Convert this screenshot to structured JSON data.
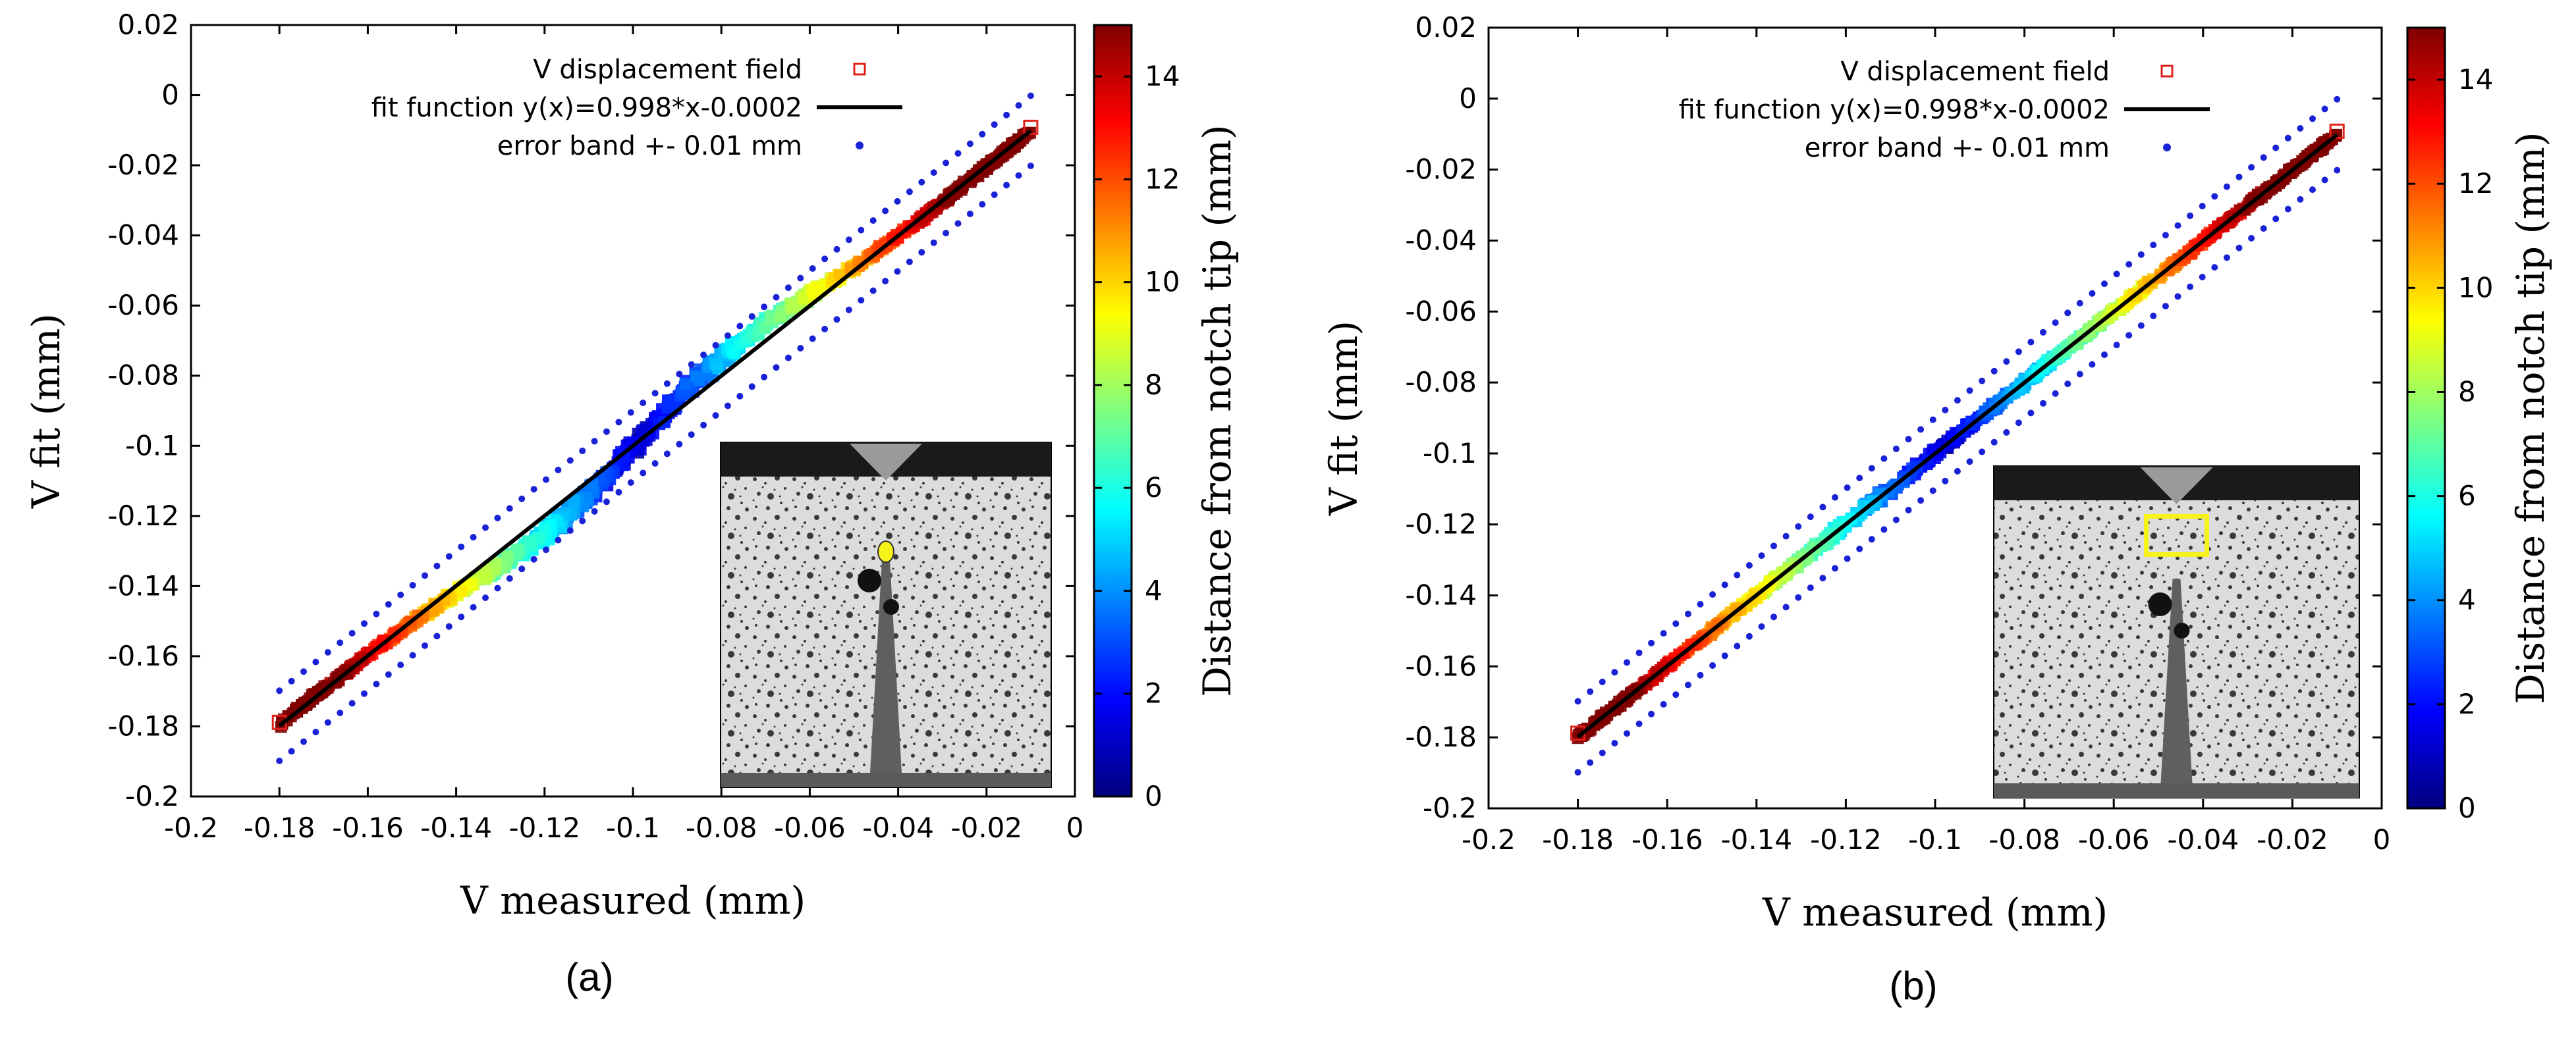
{
  "colors": {
    "marker_outline": "#e0201a",
    "fit_line": "#000000",
    "error_band": "#1a22d6",
    "inset_highlight": "#f6f21a",
    "colormap": [
      "#00007f",
      "#0000ff",
      "#007fff",
      "#00ffff",
      "#7fff7f",
      "#ffff00",
      "#ff7f00",
      "#ff0000",
      "#7f0000"
    ]
  },
  "chart_data": [
    {
      "type": "scatter",
      "panel_label": "(a)",
      "xlabel": "V measured (mm)",
      "ylabel": "V fit (mm)",
      "colorbar_label": "Distance from notch tip (mm)",
      "xlim": [
        -0.2,
        0
      ],
      "ylim": [
        -0.2,
        0.02
      ],
      "xticks": [
        -0.2,
        -0.18,
        -0.16,
        -0.14,
        -0.12,
        -0.1,
        -0.08,
        -0.06,
        -0.04,
        -0.02,
        0
      ],
      "yticks": [
        0.02,
        0,
        -0.02,
        -0.04,
        -0.06,
        -0.08,
        -0.1,
        -0.12,
        -0.14,
        -0.16,
        -0.18,
        -0.2
      ],
      "colorbar_range": [
        0,
        15
      ],
      "colorbar_ticks": [
        0,
        2,
        4,
        6,
        8,
        10,
        12,
        14
      ],
      "legend": [
        {
          "label": "V displacement field",
          "symbol": "open-square"
        },
        {
          "label": "fit function y(x)=0.998*x-0.0002",
          "symbol": "line"
        },
        {
          "label": "error band +- 0.01 mm",
          "symbol": "dot"
        }
      ],
      "series": [
        {
          "name": "V displacement field",
          "x_range": [
            -0.18,
            -0.01
          ],
          "distance_range": [
            0,
            15
          ],
          "spread": "wide S-shaped deviation near -0.1"
        },
        {
          "name": "fit function y(x)=0.998*x-0.0002",
          "slope": 0.998,
          "intercept": -0.0002,
          "x_range": [
            -0.18,
            -0.01
          ]
        },
        {
          "name": "error band +- 0.01 mm",
          "offset": 0.01,
          "x_range": [
            -0.18,
            -0.01
          ]
        }
      ],
      "inset": {
        "marker": "yellow dot at notch tip"
      }
    },
    {
      "type": "scatter",
      "panel_label": "(b)",
      "xlabel": "V measured (mm)",
      "ylabel": "V fit (mm)",
      "colorbar_label": "Distance from notch tip (mm)",
      "xlim": [
        -0.2,
        0
      ],
      "ylim": [
        -0.2,
        0.02
      ],
      "xticks": [
        -0.2,
        -0.18,
        -0.16,
        -0.14,
        -0.12,
        -0.1,
        -0.08,
        -0.06,
        -0.04,
        -0.02,
        0
      ],
      "yticks": [
        0.02,
        0,
        -0.02,
        -0.04,
        -0.06,
        -0.08,
        -0.1,
        -0.12,
        -0.14,
        -0.16,
        -0.18,
        -0.2
      ],
      "colorbar_range": [
        0,
        15
      ],
      "colorbar_ticks": [
        0,
        2,
        4,
        6,
        8,
        10,
        12,
        14
      ],
      "legend": [
        {
          "label": "V displacement field",
          "symbol": "open-square"
        },
        {
          "label": "fit function y(x)=0.998*x-0.0002",
          "symbol": "line"
        },
        {
          "label": "error band +- 0.01 mm",
          "symbol": "dot"
        }
      ],
      "series": [
        {
          "name": "V displacement field",
          "x_range": [
            -0.18,
            -0.01
          ],
          "distance_range": [
            0,
            15
          ],
          "spread": "narrow, close to fit line"
        },
        {
          "name": "fit function y(x)=0.998*x-0.0002",
          "slope": 0.998,
          "intercept": -0.0002,
          "x_range": [
            -0.18,
            -0.01
          ]
        },
        {
          "name": "error band +- 0.01 mm",
          "offset": 0.01,
          "x_range": [
            -0.18,
            -0.01
          ]
        }
      ],
      "inset": {
        "marker": "yellow box above notch tip"
      }
    }
  ]
}
